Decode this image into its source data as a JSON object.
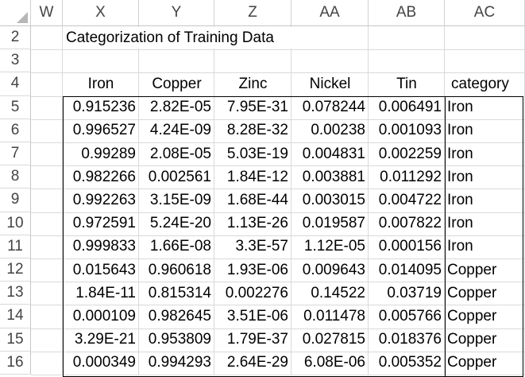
{
  "column_headers": [
    "W",
    "X",
    "Y",
    "Z",
    "AA",
    "AB",
    "AC"
  ],
  "row_headers": [
    "2",
    "3",
    "4",
    "5",
    "6",
    "7",
    "8",
    "9",
    "10",
    "11",
    "12",
    "13",
    "14",
    "15",
    "16"
  ],
  "title": "Categorization of Training Data",
  "table_headers": [
    "Iron",
    "Copper",
    "Zinc",
    "Nickel",
    "Tin",
    "category"
  ],
  "rows": [
    [
      "0.915236",
      "2.82E-05",
      "7.95E-31",
      "0.078244",
      "0.006491",
      "Iron"
    ],
    [
      "0.996527",
      "4.24E-09",
      "8.28E-32",
      "0.00238",
      "0.001093",
      "Iron"
    ],
    [
      "0.99289",
      "2.08E-05",
      "5.03E-19",
      "0.004831",
      "0.002259",
      "Iron"
    ],
    [
      "0.982266",
      "0.002561",
      "1.84E-12",
      "0.003881",
      "0.011292",
      "Iron"
    ],
    [
      "0.992263",
      "3.15E-09",
      "1.68E-44",
      "0.003015",
      "0.004722",
      "Iron"
    ],
    [
      "0.972591",
      "5.24E-20",
      "1.13E-26",
      "0.019587",
      "0.007822",
      "Iron"
    ],
    [
      "0.999833",
      "1.66E-08",
      "3.3E-57",
      "1.12E-05",
      "0.000156",
      "Iron"
    ],
    [
      "0.015643",
      "0.960618",
      "1.93E-06",
      "0.009643",
      "0.014095",
      "Copper"
    ],
    [
      "1.84E-11",
      "0.815314",
      "0.002276",
      "0.14522",
      "0.03719",
      "Copper"
    ],
    [
      "0.000109",
      "0.982645",
      "3.51E-06",
      "0.011478",
      "0.005766",
      "Copper"
    ],
    [
      "3.29E-21",
      "0.953809",
      "1.79E-37",
      "0.027815",
      "0.018376",
      "Copper"
    ],
    [
      "0.000349",
      "0.994293",
      "2.64E-29",
      "6.08E-06",
      "0.005352",
      "Copper"
    ]
  ]
}
